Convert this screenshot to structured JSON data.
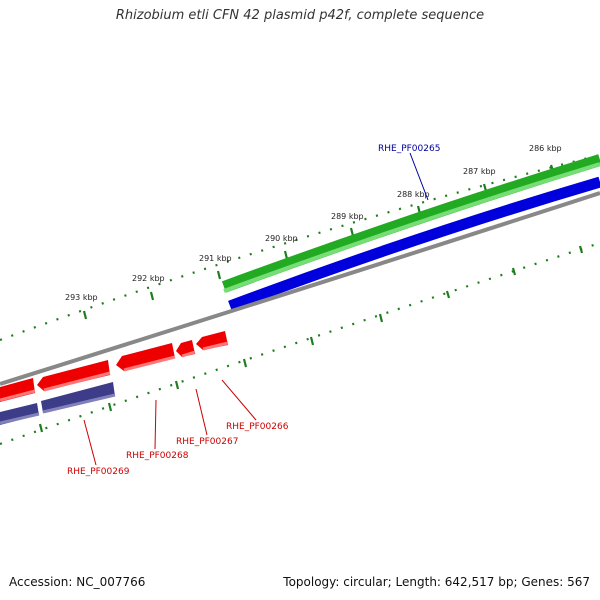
{
  "title": "Rhizobium etli CFN 42 plasmid p42f, complete sequence",
  "footer": {
    "accession": "Accession: NC_007766",
    "summary": "Topology: circular; Length: 642,517 bp; Genes: 567"
  },
  "colors": {
    "tick": "#1e7d1e",
    "label_dark": "#222222",
    "forward_gene": "#22aa22",
    "forward_gene_light": "#77dd77",
    "forward_cds": "#0000dd",
    "backbone": "#888888",
    "reverse_gene": "#ee0000",
    "reverse_gene_light": "#ff7777",
    "reverse_cds": "#3c3c88",
    "reverse_cds_light": "#8080bb",
    "label_red": "#cc0000",
    "label_blue": "#000099"
  },
  "ticks": [
    "286 kbp",
    "287 kbp",
    "288 kbp",
    "289 kbp",
    "290 kbp",
    "291 kbp",
    "292 kbp",
    "293 kbp"
  ],
  "gene_labels": {
    "forward": [
      "RHE_PF00265"
    ],
    "reverse": [
      "RHE_PF00266",
      "RHE_PF00267",
      "RHE_PF00268",
      "RHE_PF00269"
    ]
  }
}
